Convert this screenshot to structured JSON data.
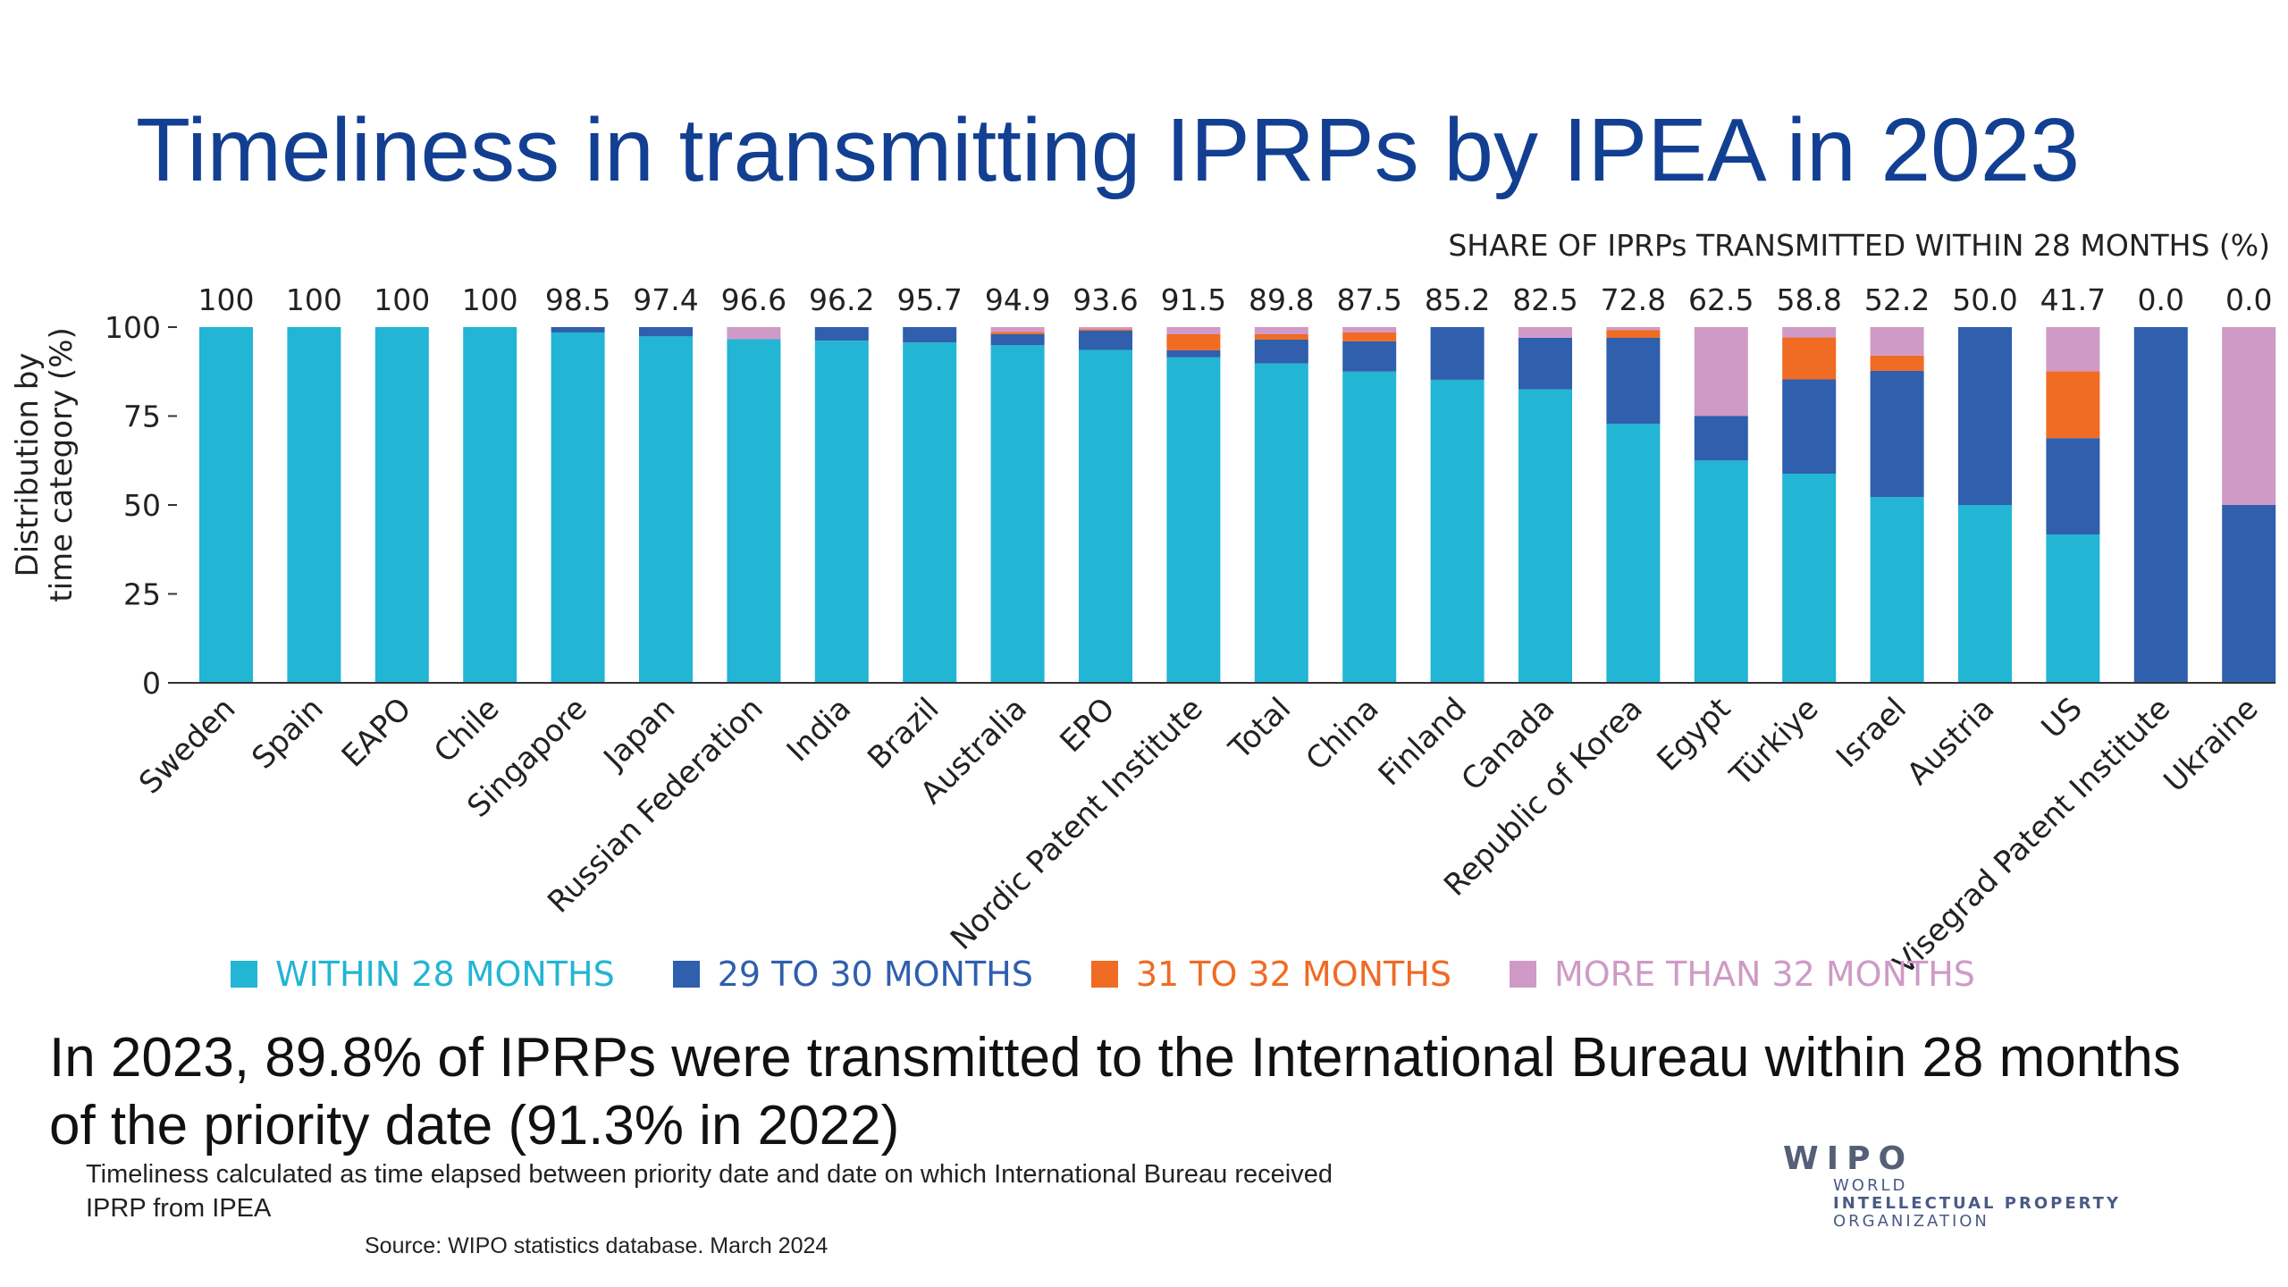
{
  "title": "Timeliness in transmitting IPRPs by IPEA in 2023",
  "chart_data": {
    "type": "bar",
    "stacked": true,
    "share_label": "SHARE OF IPRPs TRANSMITTED WITHIN 28 MONTHS (%)",
    "ylabel_line1": "Distribution by",
    "ylabel_line2": "time category (%)",
    "ylim": [
      0,
      100
    ],
    "yticks": [
      "0",
      "25",
      "50",
      "75",
      "100"
    ],
    "categories": [
      "Sweden",
      "Spain",
      "EAPO",
      "Chile",
      "Singapore",
      "Japan",
      "Russian Federation",
      "India",
      "Brazil",
      "Australia",
      "EPO",
      "Nordic Patent Institute",
      "Total",
      "China",
      "Finland",
      "Canada",
      "Republic of Korea",
      "Egypt",
      "Türkiye",
      "Israel",
      "Austria",
      "US",
      "Visegrad Patent Institute",
      "Ukraine"
    ],
    "share_values": [
      "100",
      "100",
      "100",
      "100",
      "98.5",
      "97.4",
      "96.6",
      "96.2",
      "95.7",
      "94.9",
      "93.6",
      "91.5",
      "89.8",
      "87.5",
      "85.2",
      "82.5",
      "72.8",
      "62.5",
      "58.8",
      "52.2",
      "50.0",
      "41.7",
      "0.0",
      "0.0"
    ],
    "series": [
      {
        "name": "WITHIN 28 MONTHS",
        "color": "#22b5d4",
        "values": [
          100,
          100,
          100,
          100,
          98.5,
          97.4,
          96.6,
          96.2,
          95.7,
          94.9,
          93.6,
          91.5,
          89.8,
          87.5,
          85.2,
          82.5,
          72.8,
          62.5,
          58.8,
          52.2,
          50.0,
          41.7,
          0,
          0
        ]
      },
      {
        "name": "29 TO 30 MONTHS",
        "color": "#2f5fad",
        "values": [
          0,
          0,
          0,
          0,
          1.5,
          2.6,
          0,
          3.8,
          4.3,
          3.1,
          5.4,
          2.0,
          6.7,
          8.5,
          14.8,
          14.5,
          24.2,
          12.5,
          26.5,
          35.5,
          50.0,
          27.1,
          100,
          50.0
        ]
      },
      {
        "name": "31 TO 32 MONTHS",
        "color": "#f06b24",
        "values": [
          0,
          0,
          0,
          0,
          0,
          0,
          0,
          0,
          0,
          0.6,
          0.4,
          4.5,
          1.5,
          2.5,
          0,
          0,
          2.2,
          0,
          11.8,
          4.3,
          0,
          18.8,
          0,
          0
        ]
      },
      {
        "name": "MORE THAN 32 MONTHS",
        "color": "#cf9ac6",
        "values": [
          0,
          0,
          0,
          0,
          0,
          0,
          3.4,
          0,
          0,
          1.4,
          0.6,
          2.0,
          2.0,
          1.5,
          0,
          3.0,
          0.8,
          25.0,
          2.9,
          8.0,
          0,
          12.4,
          0,
          50.0
        ]
      }
    ]
  },
  "summary": "In 2023, 89.8% of IPRPs were transmitted to the International Bureau within 28 months of the priority date (91.3% in 2022)",
  "footnote": "Timeliness calculated as time elapsed between priority date and date on which International Bureau received IPRP from IPEA",
  "source": "Source:  WIPO statistics database.  March 2024",
  "logo": {
    "word": "WIPO",
    "line1": "WORLD",
    "line2": "INTELLECTUAL PROPERTY",
    "line3": "ORGANIZATION"
  }
}
